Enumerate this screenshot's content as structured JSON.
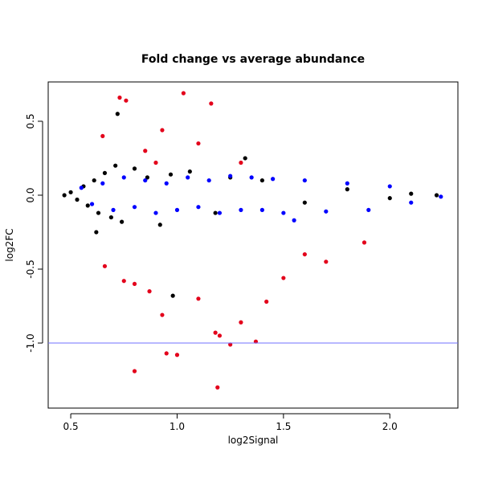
{
  "chart_data": {
    "type": "scatter",
    "title": "Fold change vs average abundance",
    "x_label": "log2Signal",
    "y_label": "log2FC",
    "xlim": [
      0.394,
      2.32
    ],
    "ylim": [
      -1.44,
      0.766
    ],
    "xticks": [
      0.5,
      {
        "value": 1,
        "label": "1.0"
      },
      1.5,
      {
        "value": 2,
        "label": "2.0"
      }
    ],
    "yticks": [
      {
        "value": -1,
        "label": "-1.0"
      },
      -0.5,
      {
        "value": 0,
        "label": "0.0"
      },
      0.5
    ],
    "hline": {
      "value": -1,
      "color": "#7070ff"
    },
    "series": [
      {
        "color": "#000000",
        "x": [
          0.47,
          0.5,
          0.53,
          0.56,
          0.58,
          0.61,
          0.63,
          0.66,
          0.69,
          0.71,
          0.74,
          0.8,
          0.86,
          0.92,
          0.97,
          1.06,
          1.18,
          1.25,
          1.4,
          1.6,
          1.8,
          2.0,
          2.1,
          2.22,
          0.72,
          0.98,
          0.62,
          1.32
        ],
        "values": [
          0,
          0.02,
          -0.03,
          0.06,
          -0.07,
          0.1,
          -0.12,
          0.15,
          -0.15,
          0.2,
          -0.18,
          0.18,
          0.12,
          -0.2,
          0.14,
          0.16,
          -0.12,
          0.12,
          0.1,
          -0.05,
          0.04,
          -0.02,
          0.01,
          0,
          0.55,
          -0.68,
          -0.25,
          0.25
        ]
      },
      {
        "color": "#0000ff",
        "x": [
          0.55,
          0.6,
          0.65,
          0.7,
          0.75,
          0.8,
          0.85,
          0.9,
          0.95,
          1.0,
          1.05,
          1.1,
          1.15,
          1.2,
          1.25,
          1.3,
          1.35,
          1.4,
          1.45,
          1.5,
          1.6,
          1.7,
          1.8,
          1.9,
          2.0,
          2.1,
          2.24,
          1.55
        ],
        "values": [
          0.05,
          -0.06,
          0.08,
          -0.1,
          0.12,
          -0.08,
          0.1,
          -0.12,
          0.08,
          -0.1,
          0.12,
          -0.08,
          0.1,
          -0.12,
          0.13,
          -0.1,
          0.12,
          -0.1,
          0.11,
          -0.12,
          0.1,
          -0.11,
          0.08,
          -0.1,
          0.06,
          -0.05,
          -0.01,
          -0.17
        ]
      },
      {
        "color": "#e3001b",
        "x": [
          0.73,
          0.76,
          1.03,
          1.16,
          0.65,
          0.93,
          0.85,
          1.1,
          0.9,
          1.3,
          0.66,
          0.75,
          0.8,
          0.87,
          0.93,
          0.95,
          1.0,
          0.8,
          1.18,
          1.2,
          1.25,
          1.37,
          1.19,
          1.1,
          1.3,
          1.42,
          1.5,
          1.6,
          1.7,
          1.88
        ],
        "values": [
          0.66,
          0.64,
          0.69,
          0.62,
          0.4,
          0.44,
          0.3,
          0.35,
          0.22,
          0.22,
          -0.48,
          -0.58,
          -0.6,
          -0.65,
          -0.81,
          -1.07,
          -1.08,
          -1.19,
          -0.93,
          -0.95,
          -1.01,
          -0.99,
          -1.3,
          -0.7,
          -0.86,
          -0.72,
          -0.56,
          -0.4,
          -0.45,
          -0.32
        ]
      }
    ]
  }
}
